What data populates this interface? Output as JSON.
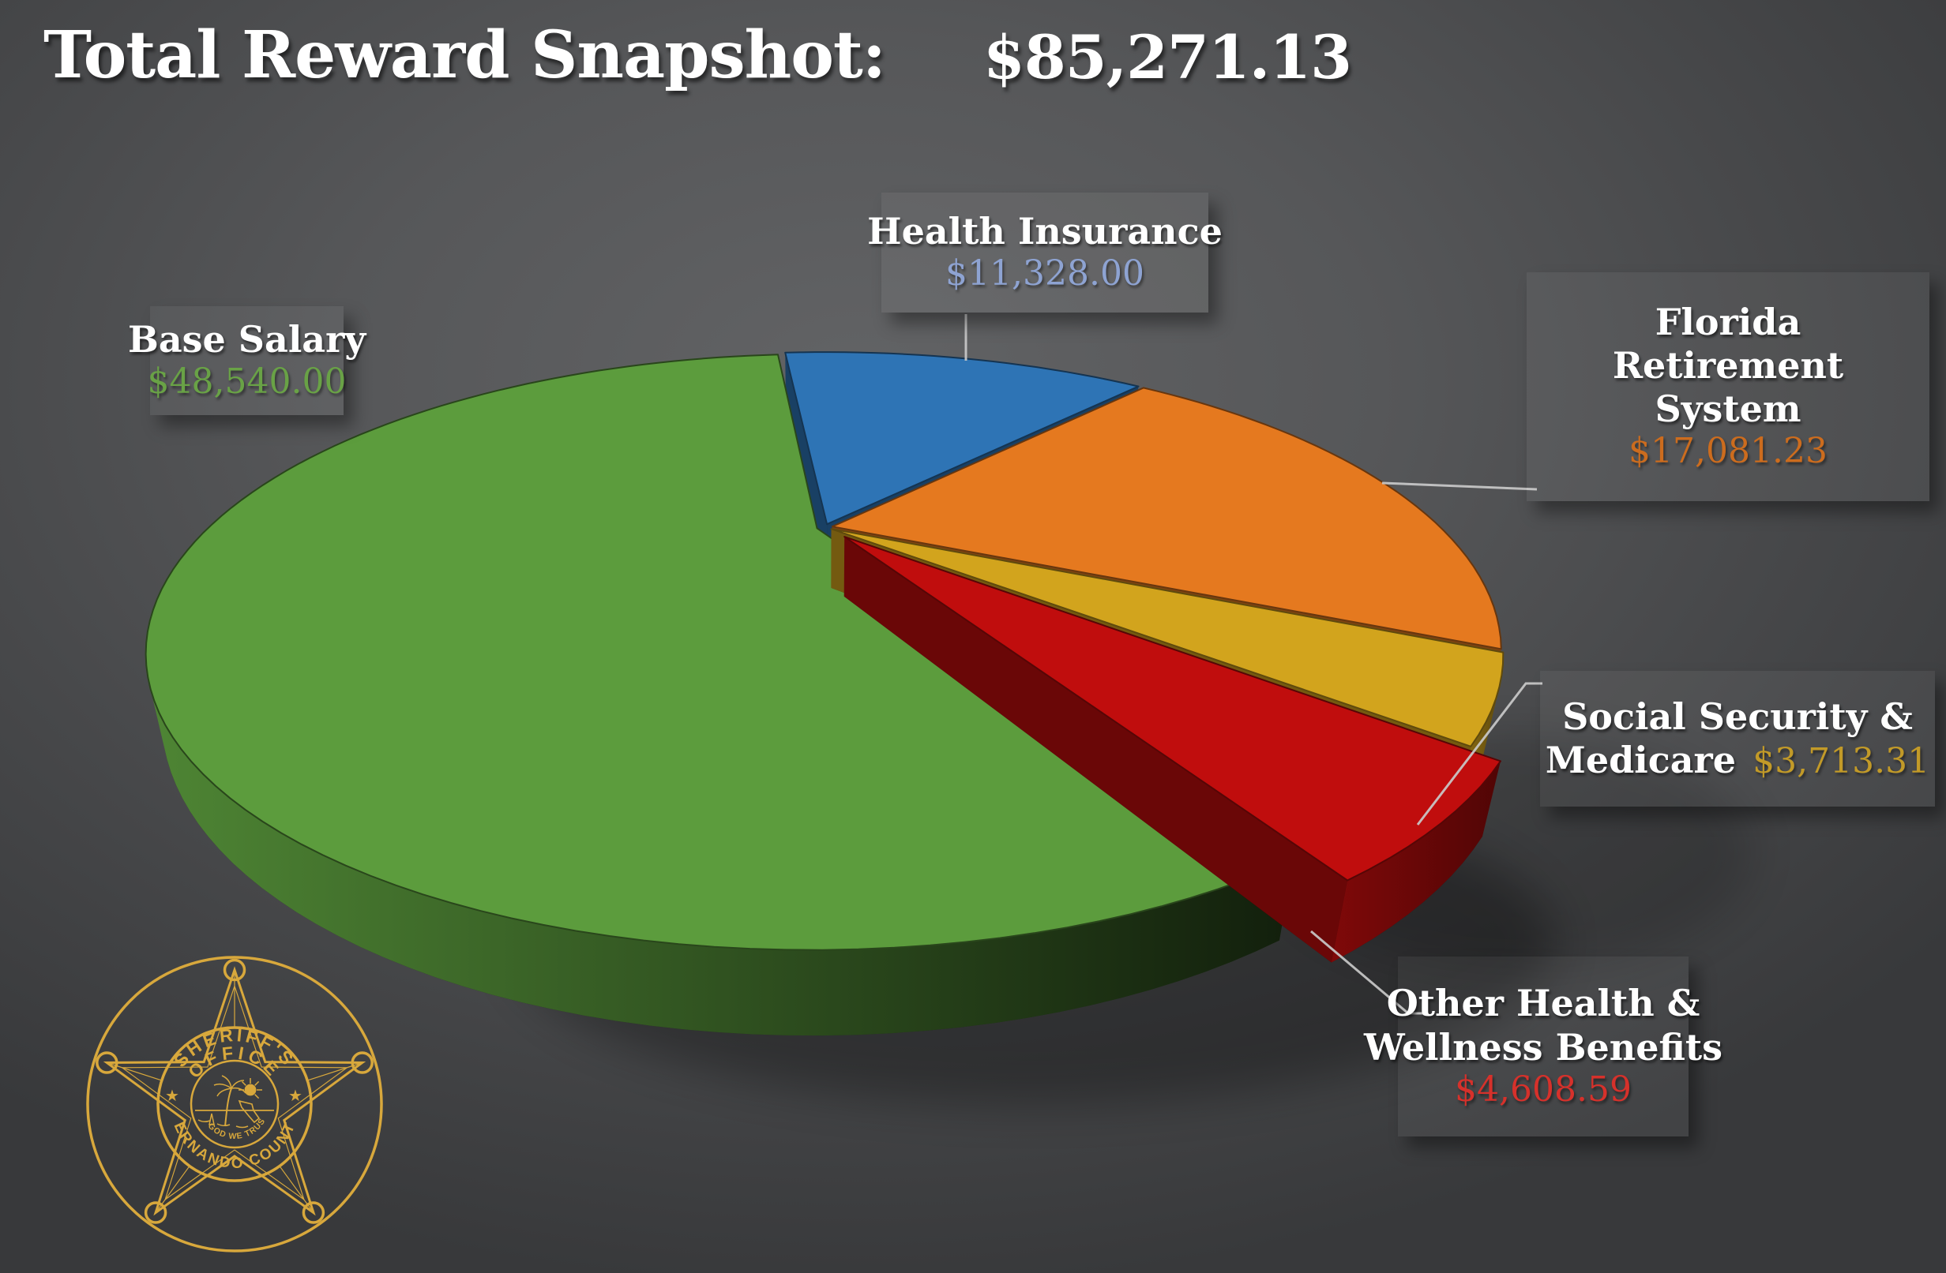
{
  "title": {
    "label": "Total Reward Snapshot:",
    "value": "$85,271.13"
  },
  "chart_data": {
    "type": "pie",
    "style": "3d-exploded",
    "title": "Total Reward Snapshot",
    "total": 85271.13,
    "total_display": "$85,271.13",
    "start_angle_deg": -5.5,
    "legend_position": "callouts",
    "slices": [
      {
        "label": "Health Insurance",
        "label_lines": [
          "Health Insurance"
        ],
        "value": 11328.0,
        "display_value": "$11,328.00",
        "color": "#2E74B5",
        "value_color": "#8EA3D2",
        "explode": 0.013
      },
      {
        "label": "Florida Retirement System",
        "label_lines": [
          "Florida",
          "Retirement",
          "System"
        ],
        "value": 17081.23,
        "display_value": "$17,081.23",
        "color": "#E5791F",
        "value_color": "#CC6C1E",
        "explode": 0.013
      },
      {
        "label": "Social Security & Medicare",
        "label_lines": [
          "Social Security &",
          "Medicare"
        ],
        "value": 3713.31,
        "display_value": "$3,713.31",
        "color": "#D2A41D",
        "value_color": "#C29A28",
        "explode": 0.013
      },
      {
        "label": "Other Health & Wellness Benefits",
        "label_lines": [
          "Other Health &",
          "Wellness Benefits"
        ],
        "value": 4608.59,
        "display_value": "$4,608.59",
        "color": "#C00D0D",
        "value_color": "#D6312B",
        "explode": 0.05
      },
      {
        "label": "Base Salary",
        "label_lines": [
          "Base Salary"
        ],
        "value": 48540.0,
        "display_value": "$48,540.00",
        "color": "#5C9C3D",
        "value_color": "#69A246",
        "explode": 0.013
      }
    ]
  },
  "logo": {
    "arc_top_1": "SHERIFF'S",
    "arc_top_2": "OFFICE",
    "arc_bottom": "HERNANDO COUNTY",
    "motto": "IN GOD WE TRUST"
  }
}
